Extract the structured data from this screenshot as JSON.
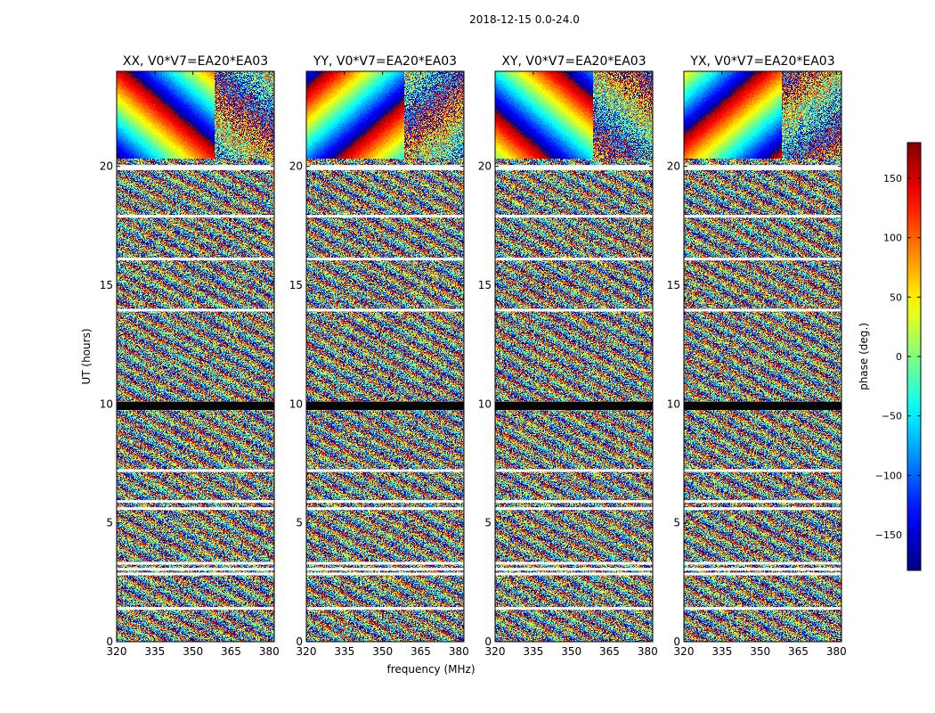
{
  "figure": {
    "suptitle": "2018-12-15 0.0-24.0",
    "xlabel": "frequency (MHz)",
    "ylabel": "UT (hours)",
    "colorbar_label": "phase (deg.)"
  },
  "chart_data": {
    "type": "heatmap",
    "colormap": "jet",
    "x": {
      "range": [
        320,
        382
      ],
      "ticks": [
        320,
        335,
        350,
        365,
        380
      ]
    },
    "y": {
      "range": [
        0,
        24
      ],
      "ticks": [
        0,
        5,
        10,
        15,
        20
      ]
    },
    "colorbar": {
      "range": [
        -180,
        180
      ],
      "ticks": [
        -150,
        -100,
        -50,
        0,
        50,
        100,
        150
      ],
      "ticklabels": [
        "−150",
        "−100",
        "−50",
        "0",
        "50",
        "100",
        "150"
      ]
    },
    "panels": [
      {
        "title": "XX, V0*V7=EA20*EA03",
        "baseline": "V0*V7=EA20*EA03",
        "polarization": "XX"
      },
      {
        "title": "YY, V0*V7=EA20*EA03",
        "baseline": "V0*V7=EA20*EA03",
        "polarization": "YY"
      },
      {
        "title": "XY, V0*V7=EA20*EA03",
        "baseline": "V0*V7=EA20*EA03",
        "polarization": "XY"
      },
      {
        "title": "YX, V0*V7=EA20*EA03",
        "baseline": "V0*V7=EA20*EA03",
        "polarization": "YX"
      }
    ],
    "gaps_ut_hours": [
      20.0,
      19.9,
      17.9,
      16.1,
      13.95,
      10.05,
      9.8,
      7.2,
      5.9,
      5.6,
      3.3,
      3.05,
      2.85,
      1.4
    ],
    "dead_band_ut_hours": [
      9.75,
      10.1
    ]
  }
}
